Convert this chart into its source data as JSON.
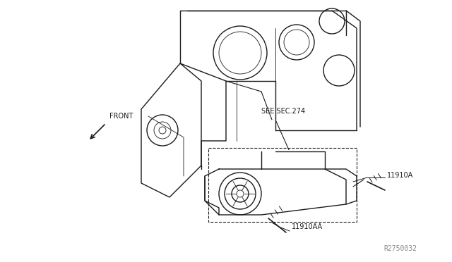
{
  "background_color": "#ffffff",
  "line_color": "#1a1a1a",
  "text_color": "#1a1a1a",
  "gray_text_color": "#888888",
  "diagram_ref": "R2750032",
  "label_see_sec": "SEE SEC.274",
  "label_front": "FRONT",
  "label_11910A": "11910A",
  "label_11910AA": "11910AA",
  "fig_width": 6.4,
  "fig_height": 3.72,
  "dpi": 100
}
